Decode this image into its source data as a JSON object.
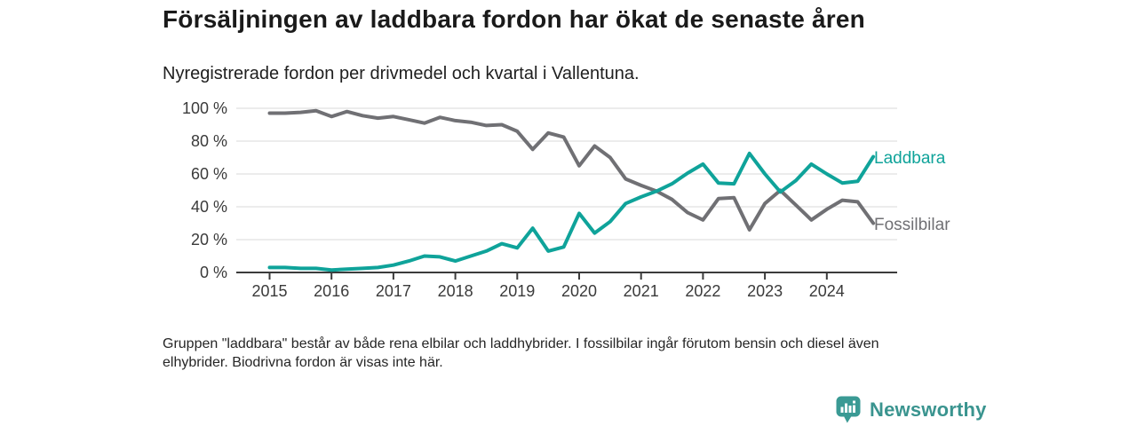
{
  "header": {
    "title": "Försäljningen av laddbara fordon har ökat de senaste åren",
    "subtitle": "Nyregistrerade fordon per drivmedel och kvartal i Vallentuna."
  },
  "chart_data": {
    "type": "line",
    "unit": "%",
    "frequency": "quarterly",
    "x_start": "2015 Q1",
    "x_end": "2024 Q4",
    "x_tick_labels": [
      "2015",
      "2016",
      "2017",
      "2018",
      "2019",
      "2020",
      "2021",
      "2022",
      "2023",
      "2024"
    ],
    "y_tick_labels": [
      "0 %",
      "20 %",
      "40 %",
      "60 %",
      "80 %",
      "100 %"
    ],
    "ylim": [
      0,
      100
    ],
    "grid": true,
    "legend_position": "end-of-line",
    "series": [
      {
        "name": "Laddbara",
        "color": "#0fa39a",
        "values": [
          3,
          3,
          2.5,
          2.5,
          1.5,
          2,
          2.5,
          3,
          4.5,
          7,
          10,
          9.5,
          7,
          10,
          13,
          17.5,
          15,
          27,
          13,
          15.5,
          36,
          24,
          31,
          42,
          46,
          49.5,
          54,
          60.5,
          66,
          54.5,
          54,
          72.5,
          60,
          49,
          56,
          66,
          60,
          54.5,
          55.5,
          70.5
        ]
      },
      {
        "name": "Fossilbilar",
        "color": "#707074",
        "values": [
          97,
          97,
          97.5,
          98.5,
          95,
          98,
          95.5,
          94,
          95,
          93,
          91,
          94.5,
          92.5,
          91.5,
          89.5,
          90,
          86,
          75,
          85,
          82.5,
          65,
          77,
          70,
          57,
          53,
          49.5,
          44.5,
          36.5,
          32,
          45,
          45.5,
          26,
          42,
          50,
          41,
          32,
          38.5,
          44,
          43,
          30
        ]
      }
    ]
  },
  "footnote": {
    "text": "Gruppen \"laddbara\" består av både rena elbilar och laddhybrider. I fossilbilar ingår förutom bensin och diesel även elhybrider. Biodrivna fordon är visas inte här."
  },
  "footer": {
    "brand": "Newsworthy",
    "brand_color": "#3a948f",
    "logo_icon": "bar-chart-speech-bubble-icon"
  }
}
